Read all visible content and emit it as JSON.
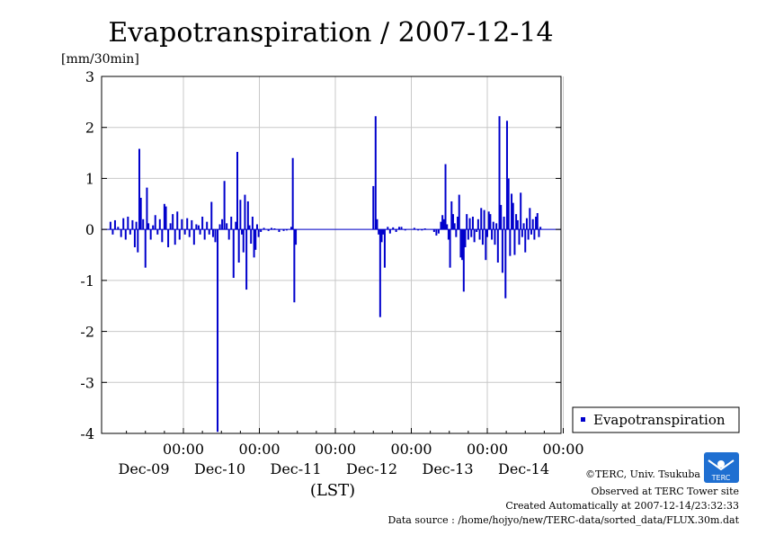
{
  "chart_data": {
    "type": "bar",
    "title": "Evapotranspiration / 2007-12-14",
    "ylabel": "[mm/30min]",
    "xlabel": "(LST)",
    "ylim": [
      -4,
      3
    ],
    "yticks": [
      "3",
      "2",
      "1",
      "0",
      "-1",
      "-2",
      "-3",
      "-4"
    ],
    "ytick_values": [
      3,
      2,
      1,
      0,
      -1,
      -2,
      -3,
      -4
    ],
    "xlim_days": [
      -1.0,
      5.0
    ],
    "xticks": [
      {
        "time": "00:00",
        "date": "Dec-09",
        "day": 0
      },
      {
        "time": "00:00",
        "date": "Dec-10",
        "day": 1
      },
      {
        "time": "00:00",
        "date": "Dec-11",
        "day": 2
      },
      {
        "time": "00:00",
        "date": "Dec-12",
        "day": 3
      },
      {
        "time": "00:00",
        "date": "Dec-13",
        "day": 4
      },
      {
        "time": "00:00",
        "date": "Dec-14",
        "day": 5
      }
    ],
    "grid": true,
    "legend_position": "bottom-right",
    "series": [
      {
        "name": "Evapotranspiration",
        "color": "#0000cc",
        "points": [
          [
            -0.96,
            0.15
          ],
          [
            -0.93,
            -0.1
          ],
          [
            -0.9,
            0.18
          ],
          [
            -0.86,
            0.05
          ],
          [
            -0.82,
            -0.15
          ],
          [
            -0.79,
            0.22
          ],
          [
            -0.76,
            -0.2
          ],
          [
            -0.73,
            0.25
          ],
          [
            -0.7,
            -0.1
          ],
          [
            -0.67,
            0.18
          ],
          [
            -0.64,
            -0.35
          ],
          [
            -0.62,
            0.15
          ],
          [
            -0.6,
            -0.45
          ],
          [
            -0.58,
            1.58
          ],
          [
            -0.56,
            0.62
          ],
          [
            -0.53,
            0.2
          ],
          [
            -0.5,
            -0.75
          ],
          [
            -0.48,
            0.82
          ],
          [
            -0.46,
            0.12
          ],
          [
            -0.43,
            -0.2
          ],
          [
            -0.4,
            0.08
          ],
          [
            -0.37,
            0.28
          ],
          [
            -0.34,
            -0.1
          ],
          [
            -0.31,
            0.2
          ],
          [
            -0.28,
            -0.25
          ],
          [
            -0.25,
            0.5
          ],
          [
            -0.23,
            0.45
          ],
          [
            -0.2,
            -0.35
          ],
          [
            -0.17,
            0.12
          ],
          [
            -0.14,
            0.3
          ],
          [
            -0.11,
            -0.3
          ],
          [
            -0.08,
            0.35
          ],
          [
            -0.05,
            -0.2
          ],
          [
            -0.02,
            0.2
          ],
          [
            0.02,
            -0.1
          ],
          [
            0.05,
            0.22
          ],
          [
            0.08,
            -0.15
          ],
          [
            0.11,
            0.18
          ],
          [
            0.14,
            -0.3
          ],
          [
            0.17,
            0.1
          ],
          [
            0.2,
            0.08
          ],
          [
            0.22,
            -0.1
          ],
          [
            0.25,
            0.25
          ],
          [
            0.28,
            -0.2
          ],
          [
            0.31,
            0.15
          ],
          [
            0.34,
            -0.1
          ],
          [
            0.37,
            0.54
          ],
          [
            0.39,
            -0.15
          ],
          [
            0.42,
            -0.25
          ],
          [
            0.45,
            -3.97
          ],
          [
            0.48,
            0.1
          ],
          [
            0.51,
            0.2
          ],
          [
            0.54,
            0.95
          ],
          [
            0.57,
            0.12
          ],
          [
            0.6,
            -0.2
          ],
          [
            0.63,
            0.25
          ],
          [
            0.66,
            -0.95
          ],
          [
            0.69,
            0.15
          ],
          [
            0.71,
            1.52
          ],
          [
            0.73,
            -0.65
          ],
          [
            0.75,
            0.58
          ],
          [
            0.77,
            -0.1
          ],
          [
            0.79,
            -0.45
          ],
          [
            0.81,
            0.68
          ],
          [
            0.83,
            -1.18
          ],
          [
            0.85,
            0.55
          ],
          [
            0.87,
            0.08
          ],
          [
            0.89,
            -0.28
          ],
          [
            0.91,
            0.25
          ],
          [
            0.93,
            -0.55
          ],
          [
            0.95,
            -0.4
          ],
          [
            0.97,
            0.1
          ],
          [
            0.99,
            -0.15
          ],
          [
            1.02,
            -0.05
          ],
          [
            1.06,
            0.03
          ],
          [
            1.12,
            -0.03
          ],
          [
            1.16,
            0.03
          ],
          [
            1.2,
            0.02
          ],
          [
            1.26,
            -0.05
          ],
          [
            1.32,
            -0.03
          ],
          [
            1.36,
            -0.02
          ],
          [
            1.42,
            0.05
          ],
          [
            1.44,
            1.4
          ],
          [
            1.46,
            -1.43
          ],
          [
            1.48,
            -0.3
          ],
          [
            2.5,
            0.85
          ],
          [
            2.53,
            2.22
          ],
          [
            2.55,
            0.2
          ],
          [
            2.57,
            -0.1
          ],
          [
            2.59,
            -1.72
          ],
          [
            2.61,
            -0.25
          ],
          [
            2.63,
            -0.1
          ],
          [
            2.65,
            -0.75
          ],
          [
            2.69,
            0.05
          ],
          [
            2.72,
            -0.08
          ],
          [
            2.76,
            0.04
          ],
          [
            2.8,
            -0.05
          ],
          [
            2.84,
            0.05
          ],
          [
            2.87,
            0.05
          ],
          [
            2.92,
            -0.02
          ],
          [
            3.04,
            0.03
          ],
          [
            3.09,
            -0.02
          ],
          [
            3.14,
            -0.02
          ],
          [
            3.18,
            0.02
          ],
          [
            3.3,
            -0.05
          ],
          [
            3.33,
            -0.12
          ],
          [
            3.36,
            -0.08
          ],
          [
            3.39,
            0.15
          ],
          [
            3.41,
            0.28
          ],
          [
            3.43,
            0.2
          ],
          [
            3.45,
            1.28
          ],
          [
            3.47,
            0.1
          ],
          [
            3.49,
            -0.2
          ],
          [
            3.51,
            -0.75
          ],
          [
            3.53,
            0.55
          ],
          [
            3.55,
            0.3
          ],
          [
            3.57,
            0.12
          ],
          [
            3.59,
            -0.15
          ],
          [
            3.61,
            0.25
          ],
          [
            3.63,
            0.68
          ],
          [
            3.65,
            -0.55
          ],
          [
            3.67,
            -0.6
          ],
          [
            3.69,
            -1.22
          ],
          [
            3.71,
            -0.35
          ],
          [
            3.73,
            0.3
          ],
          [
            3.75,
            -0.2
          ],
          [
            3.77,
            0.22
          ],
          [
            3.79,
            -0.15
          ],
          [
            3.81,
            0.25
          ],
          [
            3.83,
            -0.25
          ],
          [
            3.86,
            -0.05
          ],
          [
            3.88,
            0.2
          ],
          [
            3.9,
            -0.2
          ],
          [
            3.92,
            0.42
          ],
          [
            3.94,
            -0.3
          ],
          [
            3.96,
            0.38
          ],
          [
            3.98,
            -0.6
          ],
          [
            4.0,
            -0.15
          ],
          [
            4.02,
            0.35
          ],
          [
            4.04,
            0.3
          ],
          [
            4.06,
            -0.2
          ],
          [
            4.08,
            0.15
          ],
          [
            4.1,
            -0.3
          ],
          [
            4.12,
            0.12
          ],
          [
            4.14,
            -0.65
          ],
          [
            4.16,
            2.22
          ],
          [
            4.18,
            0.48
          ],
          [
            4.2,
            -0.85
          ],
          [
            4.22,
            0.25
          ],
          [
            4.24,
            -1.35
          ],
          [
            4.26,
            2.13
          ],
          [
            4.28,
            1.0
          ],
          [
            4.3,
            -0.52
          ],
          [
            4.32,
            0.7
          ],
          [
            4.34,
            0.52
          ],
          [
            4.36,
            -0.5
          ],
          [
            4.38,
            0.3
          ],
          [
            4.4,
            0.18
          ],
          [
            4.42,
            -0.3
          ],
          [
            4.44,
            0.72
          ],
          [
            4.46,
            -0.15
          ],
          [
            4.48,
            0.12
          ],
          [
            4.5,
            -0.45
          ],
          [
            4.52,
            0.22
          ],
          [
            4.54,
            -0.2
          ],
          [
            4.56,
            0.42
          ],
          [
            4.58,
            -0.1
          ],
          [
            4.6,
            0.2
          ],
          [
            4.62,
            -0.2
          ],
          [
            4.64,
            0.25
          ],
          [
            4.66,
            0.32
          ],
          [
            4.68,
            -0.15
          ],
          [
            4.7,
            0.05
          ]
        ]
      }
    ]
  },
  "footer": {
    "credit1": "©TERC, Univ. Tsukuba",
    "credit2": "Observed at TERC Tower site",
    "credit3": "Created Automatically at 2007-12-14/23:32:33",
    "credit4": "Data source : /home/hojyo/new/TERC-data/sorted_data/FLUX.30m.dat",
    "logo_text": "TERC"
  }
}
